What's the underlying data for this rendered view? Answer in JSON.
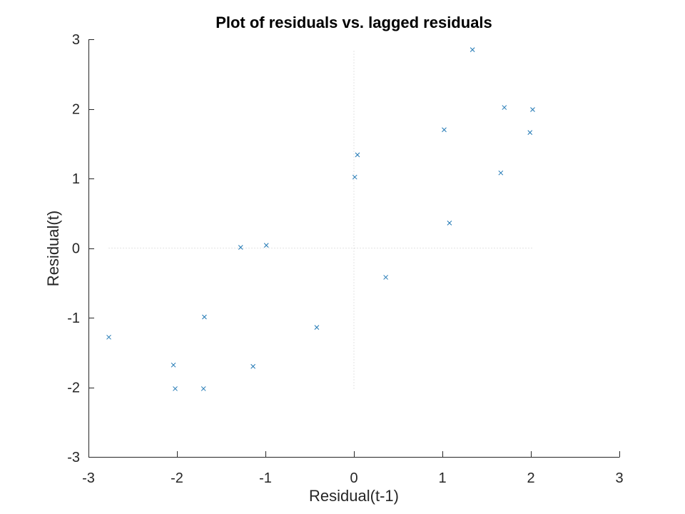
{
  "chart_data": {
    "type": "scatter",
    "title": "Plot of residuals vs. lagged residuals",
    "xlabel": "Residual(t-1)",
    "ylabel": "Residual(t)",
    "xlim": [
      -3,
      3
    ],
    "ylim": [
      -3,
      3
    ],
    "xticks": [
      -3,
      -2,
      -1,
      0,
      1,
      2,
      3
    ],
    "yticks": [
      -3,
      -2,
      -1,
      0,
      1,
      2,
      3
    ],
    "xtick_labels": [
      "-3",
      "-2",
      "-1",
      "0",
      "1",
      "2",
      "3"
    ],
    "ytick_labels": [
      "-3",
      "-2",
      "-1",
      "0",
      "1",
      "2",
      "3"
    ],
    "grid": false,
    "zero_lines": true,
    "marker": "x",
    "marker_color": "#1f77b4",
    "points": [
      {
        "x": -2.77,
        "y": -1.28
      },
      {
        "x": -2.04,
        "y": -1.68
      },
      {
        "x": -2.02,
        "y": -2.02
      },
      {
        "x": -1.69,
        "y": -0.99
      },
      {
        "x": -1.7,
        "y": -2.02
      },
      {
        "x": -1.28,
        "y": 0.01
      },
      {
        "x": -1.14,
        "y": -1.7
      },
      {
        "x": -0.99,
        "y": 0.04
      },
      {
        "x": -0.42,
        "y": -1.14
      },
      {
        "x": 0.01,
        "y": 1.02
      },
      {
        "x": 0.04,
        "y": 1.34
      },
      {
        "x": 0.36,
        "y": -0.42
      },
      {
        "x": 1.02,
        "y": 1.7
      },
      {
        "x": 1.08,
        "y": 0.36
      },
      {
        "x": 1.34,
        "y": 2.85
      },
      {
        "x": 1.66,
        "y": 1.08
      },
      {
        "x": 1.7,
        "y": 2.02
      },
      {
        "x": 1.99,
        "y": 1.66
      },
      {
        "x": 2.02,
        "y": 1.99
      }
    ]
  }
}
